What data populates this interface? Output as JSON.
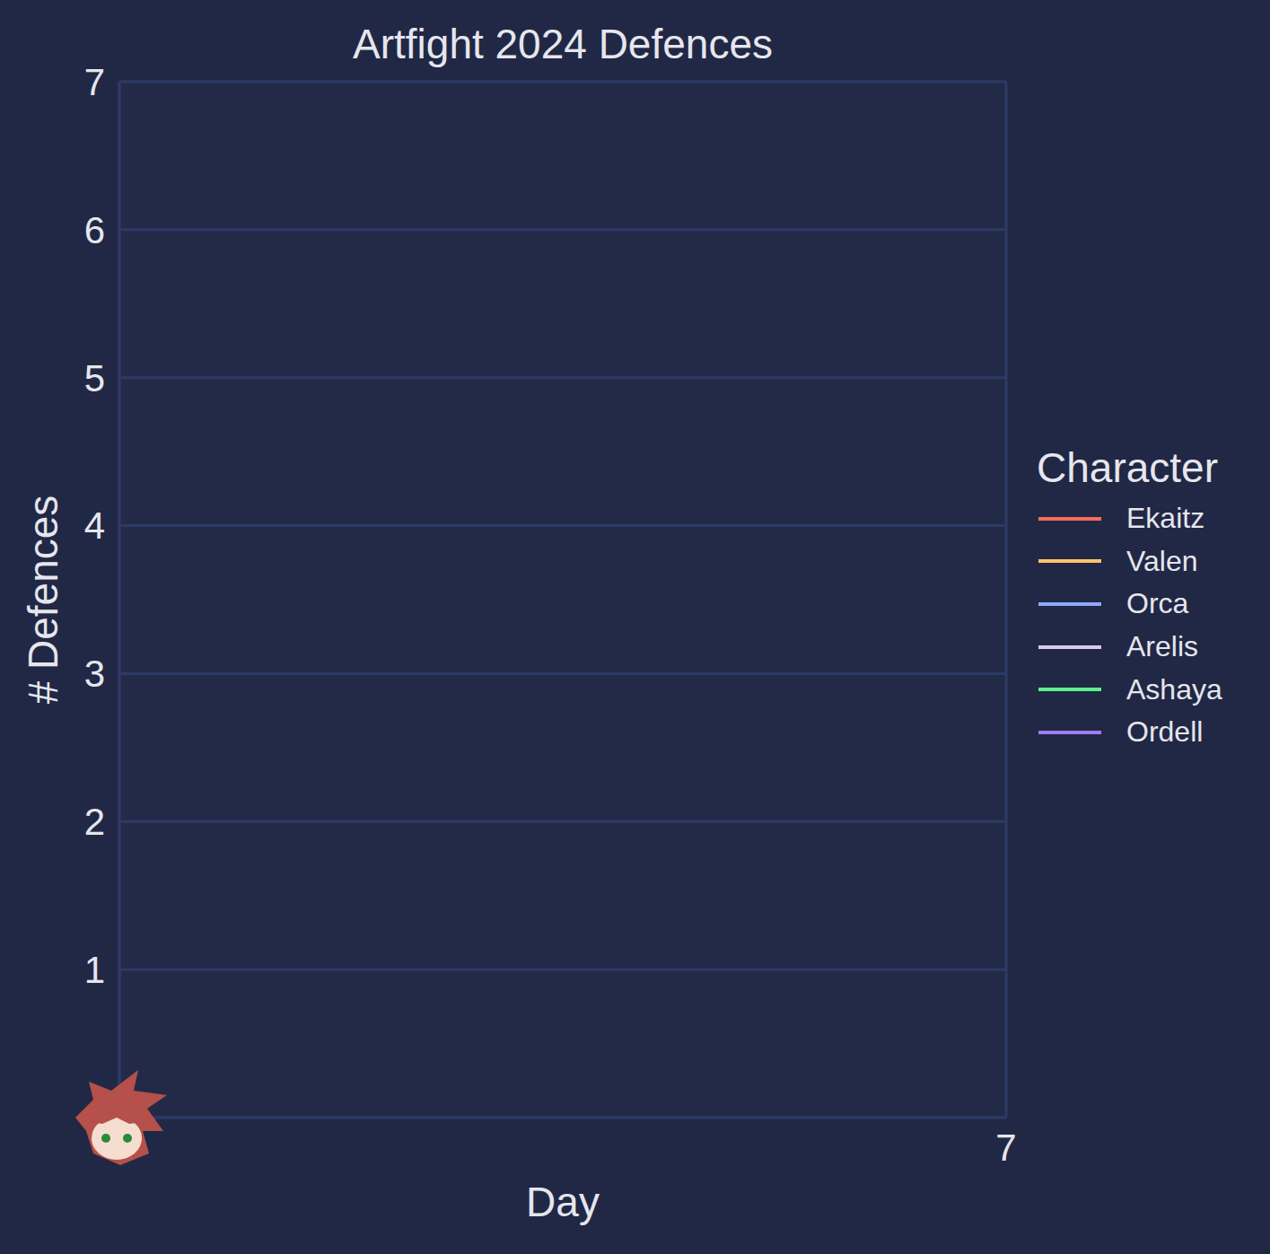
{
  "chart_data": {
    "type": "line",
    "title": "Artfight 2024 Defences",
    "x_label": "Day",
    "y_label": "# Defences",
    "legend_title": "Character",
    "x": [],
    "series": [
      {
        "name": "Ekaitz",
        "color": "#ff6b57",
        "values": []
      },
      {
        "name": "Valen",
        "color": "#ffc46b",
        "values": []
      },
      {
        "name": "Orca",
        "color": "#8fa8ff",
        "values": []
      },
      {
        "name": "Arelis",
        "color": "#dcc8f0",
        "values": []
      },
      {
        "name": "Ashaya",
        "color": "#5cf08a",
        "values": []
      },
      {
        "name": "Ordell",
        "color": "#a07cff",
        "values": []
      }
    ],
    "xlim": [
      1,
      7
    ],
    "xticks": [
      7
    ],
    "ylim": [
      0,
      7
    ],
    "yticks": [
      1,
      2,
      3,
      4,
      5,
      6,
      7
    ],
    "grid": true,
    "legend": "right"
  }
}
